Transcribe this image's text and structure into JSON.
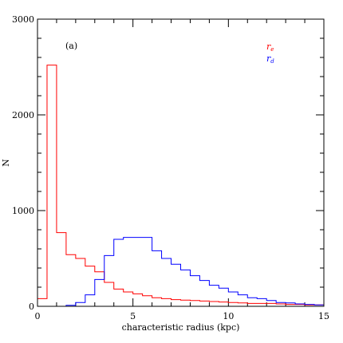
{
  "chart_data": {
    "type": "histogram",
    "panel_label": "(a)",
    "xlabel": "characteristic radius (kpc)",
    "ylabel": "N",
    "xlim": [
      0,
      15
    ],
    "ylim": [
      0,
      3000
    ],
    "x_ticks": [
      0,
      5,
      10,
      15
    ],
    "y_ticks": [
      0,
      1000,
      2000,
      3000
    ],
    "x_minor_step": 1,
    "y_minor_step": 200,
    "bin_edges": [
      0,
      0.5,
      1,
      1.5,
      2,
      2.5,
      3,
      3.5,
      4,
      4.5,
      5,
      5.5,
      6,
      6.5,
      7,
      7.5,
      8,
      8.5,
      9,
      9.5,
      10,
      10.5,
      11,
      11.5,
      12,
      12.5,
      13,
      13.5,
      14,
      14.5,
      15
    ],
    "series": [
      {
        "name": "r",
        "subscript": "e",
        "color": "#ff0000",
        "values": [
          80,
          2520,
          770,
          540,
          500,
          420,
          360,
          250,
          180,
          150,
          130,
          110,
          90,
          80,
          70,
          65,
          60,
          55,
          50,
          45,
          40,
          35,
          30,
          30,
          30,
          25,
          20,
          20,
          15,
          15
        ]
      },
      {
        "name": "r",
        "subscript": "d",
        "color": "#0000ff",
        "values": [
          0,
          0,
          0,
          10,
          40,
          120,
          280,
          530,
          700,
          720,
          720,
          720,
          580,
          500,
          440,
          380,
          320,
          270,
          220,
          190,
          150,
          120,
          90,
          80,
          60,
          40,
          35,
          25,
          20,
          15
        ]
      }
    ]
  }
}
